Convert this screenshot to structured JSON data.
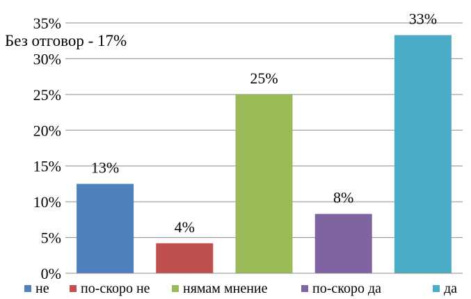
{
  "chart_data": {
    "type": "bar",
    "title": "",
    "xlabel": "",
    "ylabel": "",
    "ylim": [
      0,
      35
    ],
    "yticks": [
      0,
      5,
      10,
      15,
      20,
      25,
      30,
      35
    ],
    "ytick_labels": [
      "0%",
      "5%",
      "10%",
      "15%",
      "20%",
      "25%",
      "30%",
      "35%"
    ],
    "grid": true,
    "legend_position": "bottom",
    "categories": [
      "не",
      "по-скоро не",
      "нямам мнение",
      "по-скоро да",
      "да"
    ],
    "values": [
      12.5,
      4.2,
      25.0,
      8.3,
      33.3
    ],
    "data_labels": [
      "13%",
      "4%",
      "25%",
      "8%",
      "33%"
    ],
    "colors": [
      "#4f81bd",
      "#c0504d",
      "#9bbb59",
      "#8064a2",
      "#4bacc6"
    ],
    "annotation": "Без отговор - 17%"
  }
}
